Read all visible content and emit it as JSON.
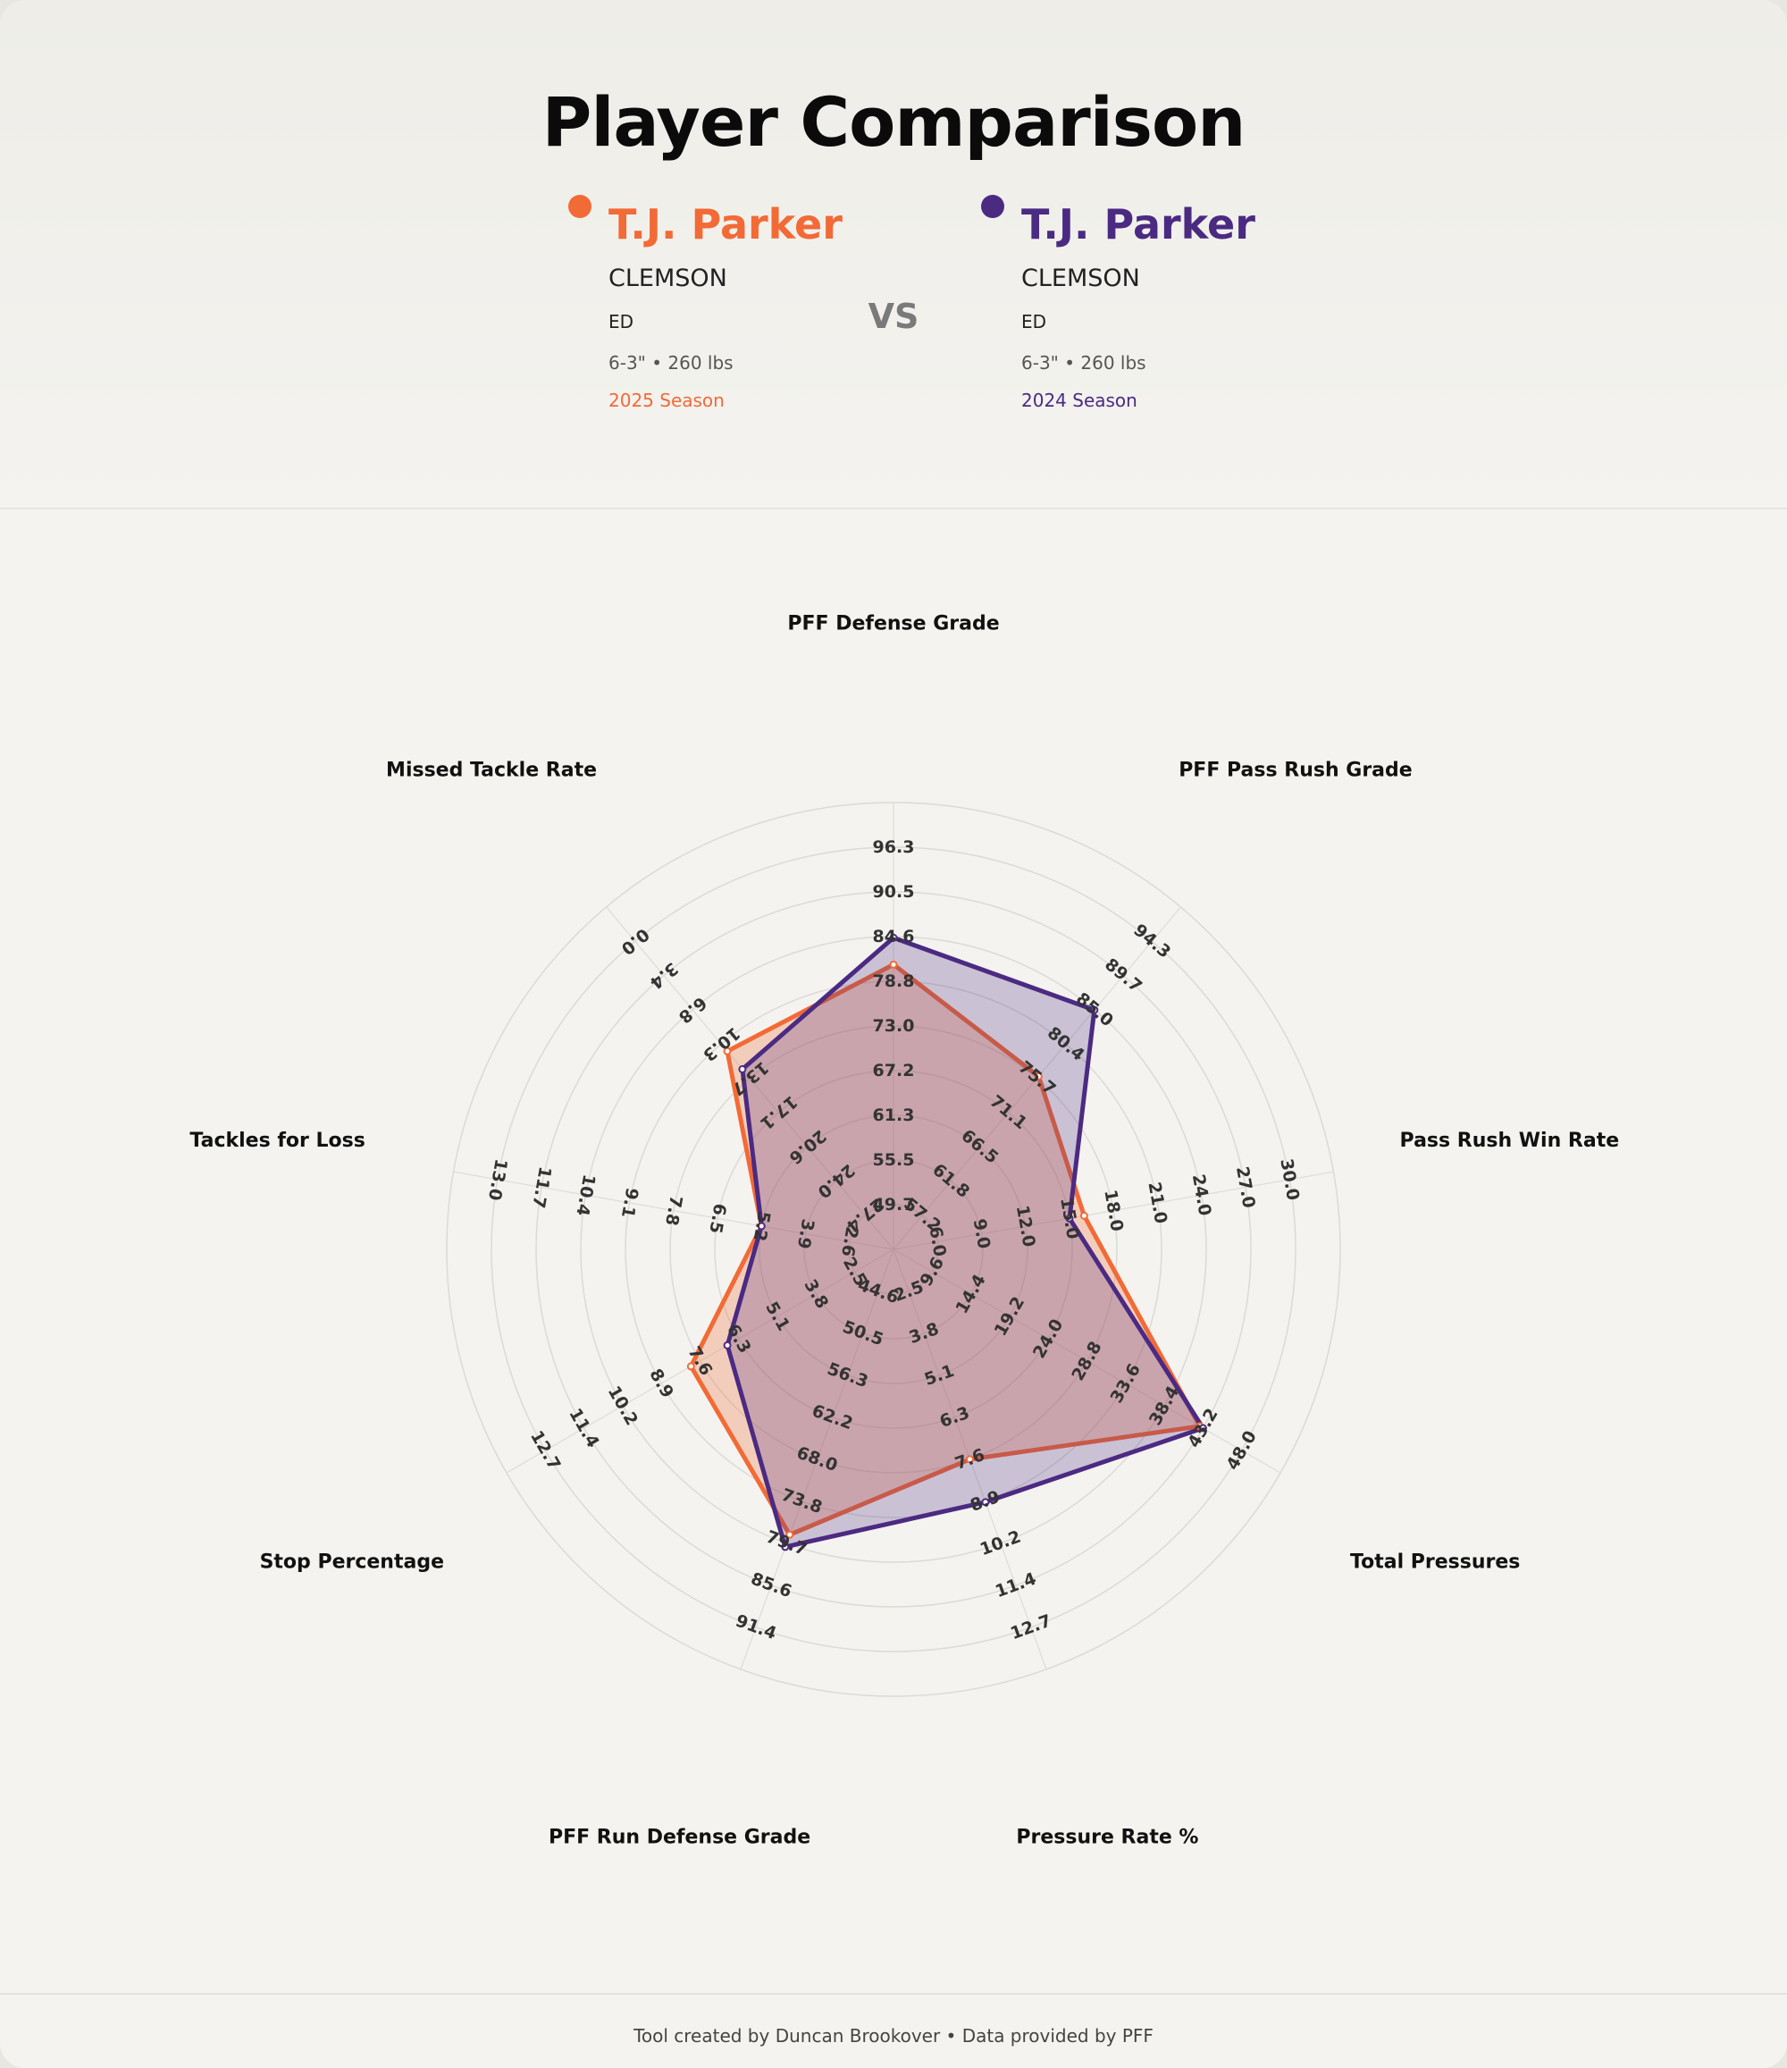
{
  "title": "Player Comparison",
  "vs_label": "VS",
  "colors": {
    "player1": "#f26a36",
    "player2": "#4b2a82"
  },
  "players": [
    {
      "name": "T.J. Parker",
      "school": "CLEMSON",
      "position": "ED",
      "size": "6-3\" • 260 lbs",
      "season": "2025 Season"
    },
    {
      "name": "T.J. Parker",
      "school": "CLEMSON",
      "position": "ED",
      "size": "6-3\" • 260 lbs",
      "season": "2024 Season"
    }
  ],
  "chart_data": {
    "type": "radar",
    "grid": true,
    "axes": [
      {
        "label": "PFF Defense Grade",
        "ticks": [
          "49.7",
          "55.5",
          "61.3",
          "67.2",
          "73.0",
          "78.8",
          "84.6",
          "90.5",
          "96.3"
        ]
      },
      {
        "label": "PFF Pass Rush Grade",
        "ticks": [
          "57.2",
          "61.8",
          "66.5",
          "71.1",
          "75.7",
          "80.4",
          "85.0",
          "89.7",
          "94.3"
        ]
      },
      {
        "label": "Pass Rush Win Rate",
        "ticks": [
          "6.0",
          "9.0",
          "12.0",
          "15.0",
          "18.0",
          "21.0",
          "24.0",
          "27.0",
          "30.0"
        ]
      },
      {
        "label": "Total Pressures",
        "ticks": [
          "9.6",
          "14.4",
          "19.2",
          "24.0",
          "28.8",
          "33.6",
          "38.4",
          "43.2",
          "48.0"
        ]
      },
      {
        "label": "Pressure Rate %",
        "ticks": [
          "2.5",
          "3.8",
          "5.1",
          "6.3",
          "7.6",
          "8.9",
          "10.2",
          "11.4",
          "12.7"
        ]
      },
      {
        "label": "PFF Run Defense Grade",
        "ticks": [
          "44.6",
          "50.5",
          "56.3",
          "62.2",
          "68.0",
          "73.8",
          "79.7",
          "85.6",
          "91.4"
        ]
      },
      {
        "label": "Stop Percentage",
        "ticks": [
          "2.5",
          "3.8",
          "5.1",
          "6.3",
          "7.6",
          "8.9",
          "10.2",
          "11.4",
          "12.7"
        ]
      },
      {
        "label": "Tackles for Loss",
        "ticks": [
          "2.6",
          "3.9",
          "5.2",
          "6.5",
          "7.8",
          "9.1",
          "10.4",
          "11.7",
          "13.0"
        ]
      },
      {
        "label": "Missed Tackle Rate",
        "ticks": [
          "27.4",
          "24.0",
          "20.6",
          "17.1",
          "13.7",
          "10.3",
          "6.8",
          "3.4",
          "0.0"
        ]
      }
    ],
    "series": [
      {
        "name": "T.J. Parker",
        "season": "2025 Season",
        "values": [
          81.0,
          76.0,
          16.0,
          42.8,
          7.6,
          78.5,
          7.9,
          5.2,
          11.0
        ]
      },
      {
        "name": "T.J. Parker",
        "season": "2024 Season",
        "values": [
          84.5,
          85.0,
          15.0,
          43.2,
          8.9,
          80.2,
          6.7,
          5.2,
          12.8
        ]
      }
    ]
  },
  "footer": "Tool created by Duncan Brookover • Data provided by PFF"
}
